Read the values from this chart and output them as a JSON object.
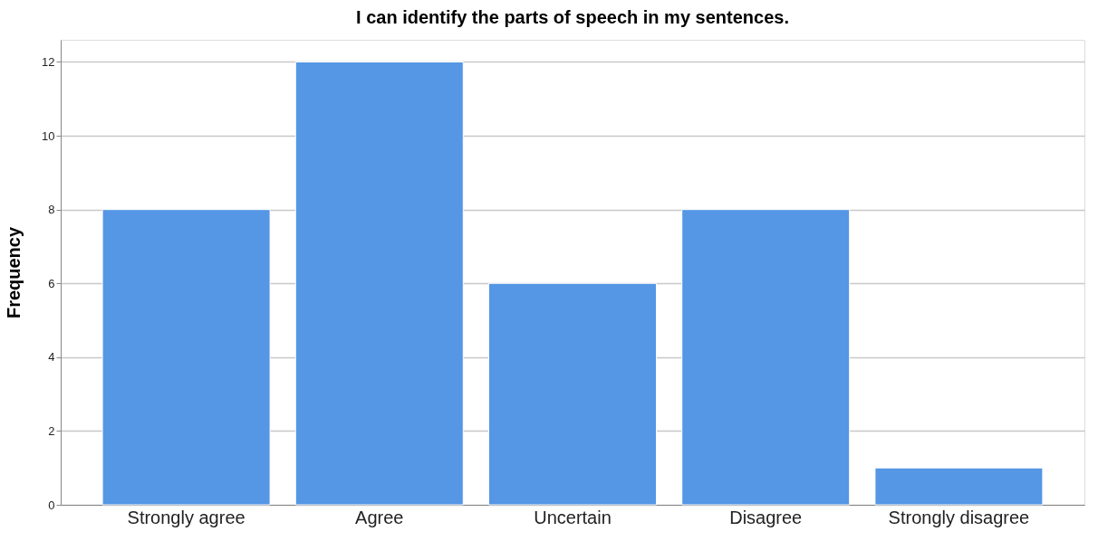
{
  "chart_data": {
    "type": "bar",
    "title": "I can identify the parts of speech in my sentences.",
    "categories": [
      "Strongly agree",
      "Agree",
      "Uncertain",
      "Disagree",
      "Strongly disagree"
    ],
    "values": [
      8,
      12,
      6,
      8,
      1
    ],
    "color": "#5596e5",
    "ylabel": "Frequency",
    "ylim": [
      0,
      12.6
    ],
    "yticks": [
      0,
      2,
      4,
      6,
      8,
      10,
      12
    ],
    "grid": "y"
  }
}
